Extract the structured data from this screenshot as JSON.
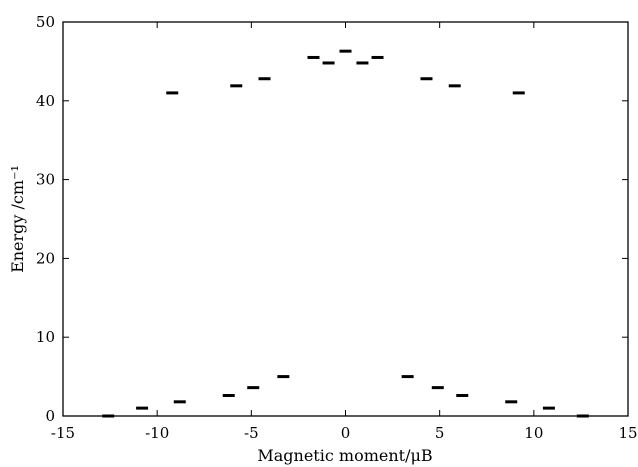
{
  "chart_data": {
    "type": "scatter",
    "marker": "horizontal-dash",
    "xlabel": "Magnetic moment/μB",
    "ylabel": "Energy /cm⁻¹",
    "xlim": [
      -15,
      15
    ],
    "ylim": [
      0,
      50
    ],
    "x_ticks": [
      -15,
      -10,
      -5,
      0,
      5,
      10,
      15
    ],
    "x_tick_labels": [
      "-15",
      "-10",
      "-5",
      "0",
      "5",
      "10",
      "15"
    ],
    "y_ticks": [
      0,
      10,
      20,
      30,
      40,
      50
    ],
    "y_tick_labels": [
      "0",
      "10",
      "20",
      "30",
      "40",
      "50"
    ],
    "grid": false,
    "color": "#000000",
    "points": [
      {
        "x": -12.6,
        "y": 0.0
      },
      {
        "x": -10.8,
        "y": 1.0
      },
      {
        "x": -8.8,
        "y": 1.8
      },
      {
        "x": -6.2,
        "y": 2.6
      },
      {
        "x": -4.9,
        "y": 3.6
      },
      {
        "x": -3.3,
        "y": 5.0
      },
      {
        "x": 3.3,
        "y": 5.0
      },
      {
        "x": 4.9,
        "y": 3.6
      },
      {
        "x": 6.2,
        "y": 2.6
      },
      {
        "x": 8.8,
        "y": 1.8
      },
      {
        "x": 10.8,
        "y": 1.0
      },
      {
        "x": 12.6,
        "y": 0.0
      },
      {
        "x": -9.2,
        "y": 41.0
      },
      {
        "x": -5.8,
        "y": 41.9
      },
      {
        "x": -4.3,
        "y": 42.8
      },
      {
        "x": -1.7,
        "y": 45.5
      },
      {
        "x": -0.9,
        "y": 44.8
      },
      {
        "x": 0.0,
        "y": 46.3
      },
      {
        "x": 0.9,
        "y": 44.8
      },
      {
        "x": 1.7,
        "y": 45.5
      },
      {
        "x": 4.3,
        "y": 42.8
      },
      {
        "x": 5.8,
        "y": 41.9
      },
      {
        "x": 9.2,
        "y": 41.0
      }
    ]
  }
}
